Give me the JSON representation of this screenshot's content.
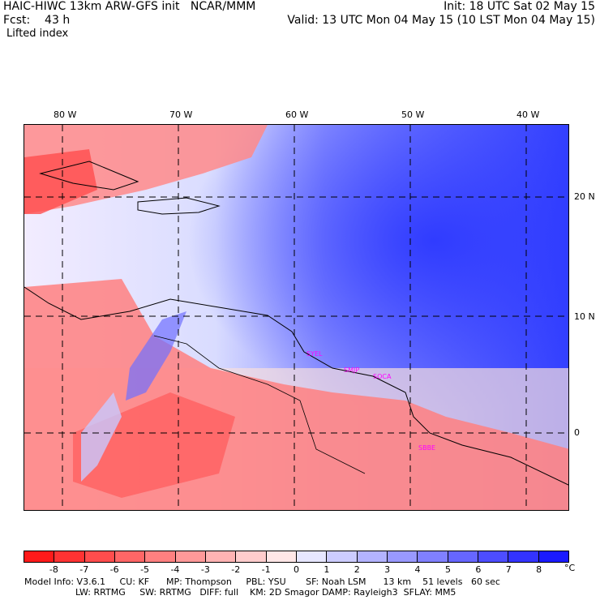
{
  "header": {
    "left_line1": "HAIC-HIWC 13km ARW-GFS init   NCAR/MMM",
    "left_line2": "Fcst:    43 h",
    "field": "Lifted index",
    "right_line1": "Init: 18 UTC Sat 02 May 15",
    "right_line2": "Valid: 13 UTC Mon 04 May 15 (10 LST Mon 04 May 15)"
  },
  "map": {
    "lon_labels": [
      "80 W",
      "70 W",
      "60 W",
      "50 W",
      "40 W"
    ],
    "lat_labels": [
      "20 N",
      "10 N",
      "0"
    ],
    "lon_values": [
      -80,
      -70,
      -60,
      -50,
      -40
    ],
    "lat_values": [
      20,
      10,
      0
    ],
    "extent": {
      "lon_min": -84,
      "lon_max": -37,
      "lat_min": -6.5,
      "lat_max": 26.5
    },
    "cities": [
      {
        "label": "SYEL",
        "lon": -58.9,
        "lat": 6.5
      },
      {
        "label": "SMJP",
        "lon": -55.2,
        "lat": 5.4
      },
      {
        "label": "SOCA",
        "lon": -52.4,
        "lat": 4.8
      },
      {
        "label": "SBBE",
        "lon": -48.5,
        "lat": -1.4
      }
    ]
  },
  "colorbar": {
    "unit": "°C",
    "ticks": [
      "-8",
      "-7",
      "-6",
      "-5",
      "-4",
      "-3",
      "-2",
      "-1",
      "0",
      "1",
      "2",
      "3",
      "4",
      "5",
      "6",
      "7",
      "8"
    ],
    "colors": [
      "#ff1a1a",
      "#ff3333",
      "#ff4d4d",
      "#ff6666",
      "#ff8080",
      "#ff9999",
      "#ffb3b3",
      "#ffcccc",
      "#ffe6e6",
      "#e6e6ff",
      "#ccccff",
      "#b3b3ff",
      "#9999ff",
      "#8080ff",
      "#6666ff",
      "#4d4dff",
      "#3333ff",
      "#1a1aff"
    ]
  },
  "footer": {
    "line1": "Model Info: V3.6.1     CU: KF      MP: Thompson     PBL: YSU       SF: Noah LSM      13 km    51 levels   60 sec",
    "line2": "                  LW: RRTMG     SW: RRTMG   DIFF: full    KM: 2D Smagor DAMP: Rayleigh3  SFLAY: MM5"
  }
}
